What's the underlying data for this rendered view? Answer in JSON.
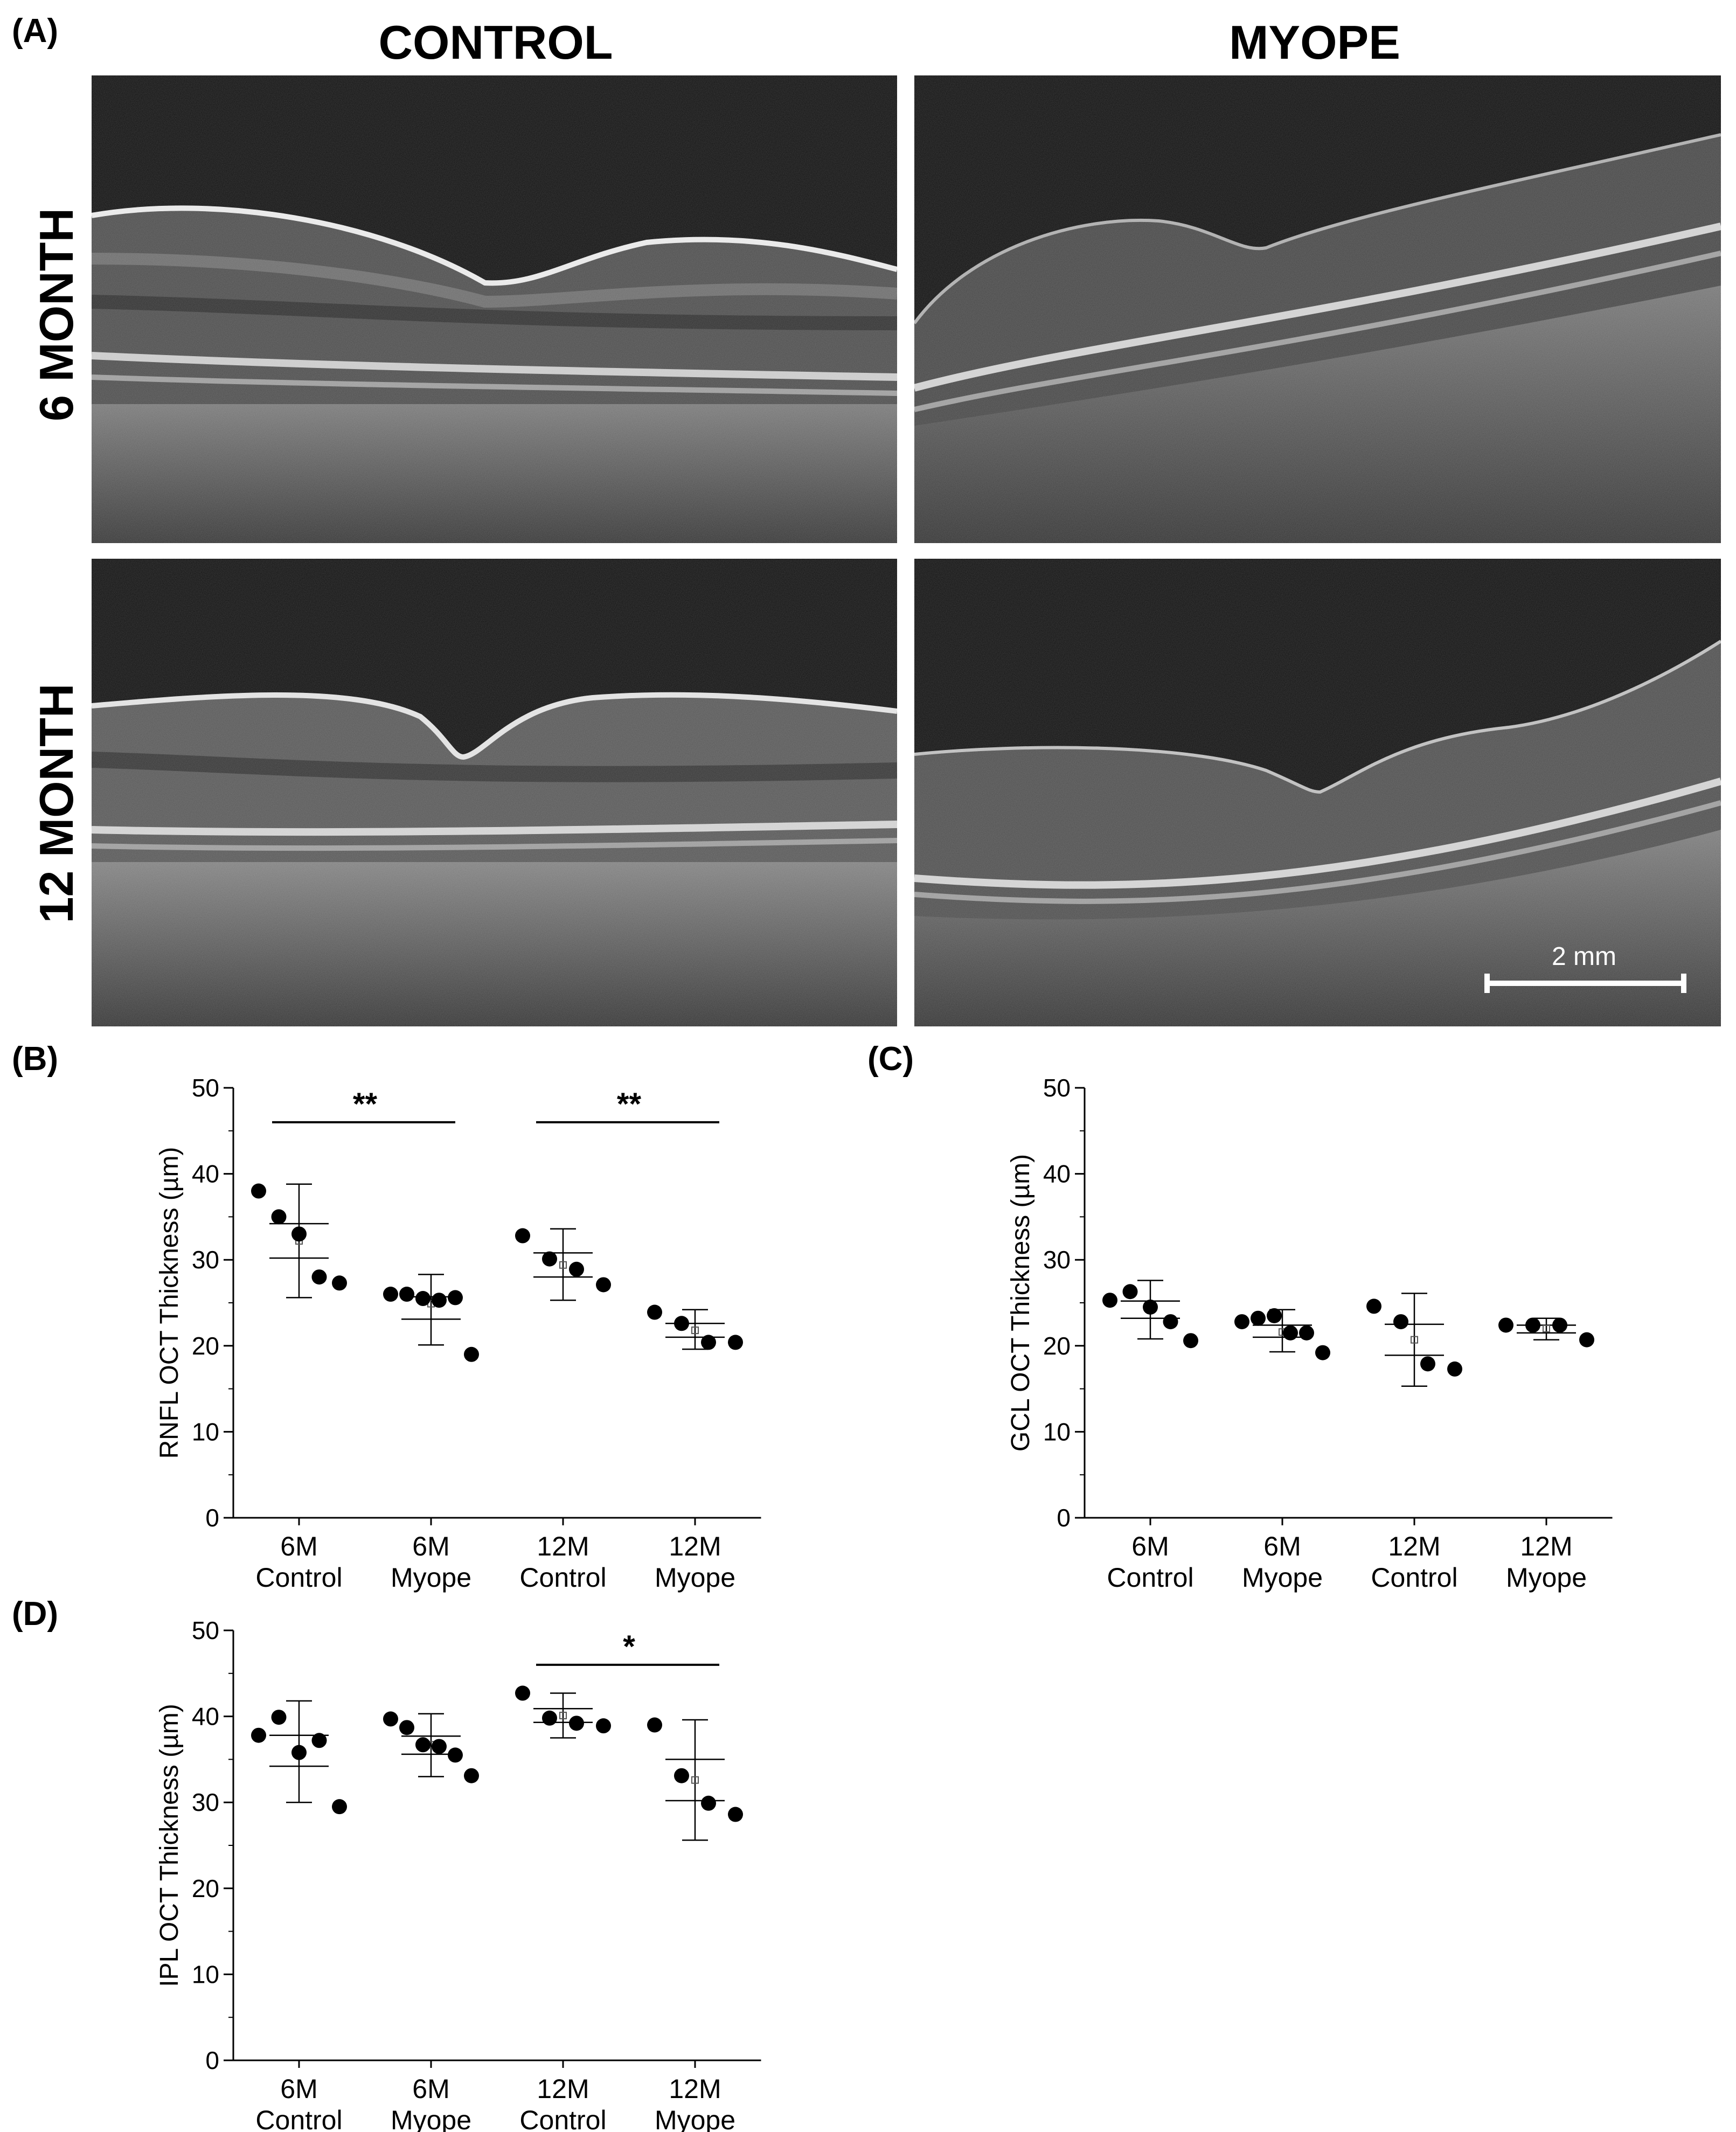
{
  "figure": {
    "panel_A_label": "(A)",
    "col_labels": [
      "CONTROL",
      "MYOPE"
    ],
    "row_labels": [
      "6 MONTH",
      "12 MONTH"
    ],
    "scalebar_label": "2 mm",
    "oct_images": [
      {
        "row": "6 MONTH",
        "col": "CONTROL"
      },
      {
        "row": "6 MONTH",
        "col": "MYOPE"
      },
      {
        "row": "12 MONTH",
        "col": "CONTROL"
      },
      {
        "row": "12 MONTH",
        "col": "MYOPE"
      }
    ]
  },
  "chart_data": [
    {
      "panel": "(B)",
      "type": "scatter",
      "ylabel": "RNFL OCT Thickness (µm)",
      "ylim": [
        0,
        50
      ],
      "yticks": [
        0,
        10,
        20,
        30,
        40,
        50
      ],
      "categories": [
        {
          "line1": "6M",
          "line2": "Control"
        },
        {
          "line1": "6M",
          "line2": "Myope"
        },
        {
          "line1": "12M",
          "line2": "Control"
        },
        {
          "line1": "12M",
          "line2": "Myope"
        }
      ],
      "groups": [
        {
          "points": [
            38,
            35,
            33,
            28,
            27.3
          ],
          "mean": 32.2,
          "sem_low": 30.2,
          "sem_high": 34.2,
          "sd_low": 25.6,
          "sd_high": 38.8
        },
        {
          "points": [
            26,
            26,
            25.5,
            25.3,
            25.6,
            19
          ],
          "mean": 24.9,
          "sem_low": 23.1,
          "sem_high": 25.7,
          "sd_low": 20.1,
          "sd_high": 28.3
        },
        {
          "points": [
            32.8,
            30.1,
            28.9,
            27.1
          ],
          "mean": 29.4,
          "sem_low": 28,
          "sem_high": 30.8,
          "sd_low": 25.3,
          "sd_high": 33.6
        },
        {
          "points": [
            23.9,
            22.6,
            20.4,
            20.4
          ],
          "mean": 21.8,
          "sem_low": 21,
          "sem_high": 22.6,
          "sd_low": 19.6,
          "sd_high": 24.2
        }
      ],
      "significance": [
        {
          "from": 0,
          "to": 1,
          "y": 46,
          "label": "**"
        },
        {
          "from": 2,
          "to": 3,
          "y": 46,
          "label": "**"
        }
      ]
    },
    {
      "panel": "(C)",
      "type": "scatter",
      "ylabel": "GCL OCT Thickness (µm)",
      "ylim": [
        0,
        50
      ],
      "yticks": [
        0,
        10,
        20,
        30,
        40,
        50
      ],
      "categories": [
        {
          "line1": "6M",
          "line2": "Control"
        },
        {
          "line1": "6M",
          "line2": "Myope"
        },
        {
          "line1": "12M",
          "line2": "Control"
        },
        {
          "line1": "12M",
          "line2": "Myope"
        }
      ],
      "groups": [
        {
          "points": [
            25.3,
            26.3,
            24.5,
            22.8,
            20.6
          ],
          "mean": 24.2,
          "sem_low": 23.2,
          "sem_high": 25.2,
          "sd_low": 20.8,
          "sd_high": 27.6
        },
        {
          "points": [
            22.8,
            23.2,
            23.5,
            21.5,
            21.5,
            19.2
          ],
          "mean": 21.6,
          "sem_low": 21,
          "sem_high": 22.4,
          "sd_low": 19.3,
          "sd_high": 24.2
        },
        {
          "points": [
            24.6,
            22.8,
            17.9,
            17.3
          ],
          "mean": 20.7,
          "sem_low": 18.9,
          "sem_high": 22.5,
          "sd_low": 15.3,
          "sd_high": 26.1
        },
        {
          "points": [
            22.4,
            22.4,
            22.4,
            20.7
          ],
          "mean": 22,
          "sem_low": 21.5,
          "sem_high": 22.4,
          "sd_low": 20.7,
          "sd_high": 23.2
        }
      ],
      "significance": []
    },
    {
      "panel": "(D)",
      "type": "scatter",
      "ylabel": "IPL OCT Thickness (µm)",
      "ylim": [
        0,
        50
      ],
      "yticks": [
        0,
        10,
        20,
        30,
        40,
        50
      ],
      "categories": [
        {
          "line1": "6M",
          "line2": "Control"
        },
        {
          "line1": "6M",
          "line2": "Myope"
        },
        {
          "line1": "12M",
          "line2": "Control"
        },
        {
          "line1": "12M",
          "line2": "Myope"
        }
      ],
      "groups": [
        {
          "points": [
            37.8,
            39.9,
            35.8,
            37.2,
            29.5
          ],
          "mean": 36,
          "sem_low": 34.2,
          "sem_high": 37.8,
          "sd_low": 30,
          "sd_high": 41.8
        },
        {
          "points": [
            39.7,
            38.7,
            36.7,
            36.5,
            35.5,
            33.1
          ],
          "mean": 36.7,
          "sem_low": 35.6,
          "sem_high": 37.7,
          "sd_low": 33,
          "sd_high": 40.3
        },
        {
          "points": [
            42.7,
            39.8,
            39.2,
            38.9
          ],
          "mean": 40.1,
          "sem_low": 39.3,
          "sem_high": 40.9,
          "sd_low": 37.5,
          "sd_high": 42.7
        },
        {
          "points": [
            39,
            33.1,
            29.9,
            28.6
          ],
          "mean": 32.6,
          "sem_low": 30.2,
          "sem_high": 35,
          "sd_low": 25.6,
          "sd_high": 39.6
        }
      ],
      "significance": [
        {
          "from": 2,
          "to": 3,
          "y": 46,
          "label": "*"
        }
      ]
    }
  ]
}
